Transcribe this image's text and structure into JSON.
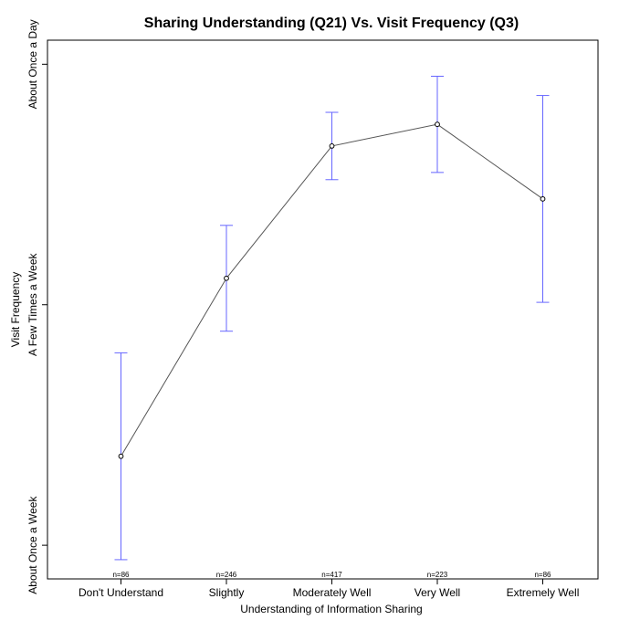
{
  "chart_data": {
    "type": "line",
    "title": "Sharing Understanding (Q21) Vs. Visit Frequency (Q3)",
    "xlabel": "Understanding of Information Sharing",
    "ylabel": "Visit Frequency",
    "categories": [
      "Don't Understand",
      "Slightly",
      "Moderately Well",
      "Very Well",
      "Extremely Well"
    ],
    "y_ticks": [
      {
        "value": 1,
        "label": "About Once a Week"
      },
      {
        "value": 2,
        "label": "A Few Times a Week"
      },
      {
        "value": 3,
        "label": "About Once a Day"
      }
    ],
    "ylim": [
      0.86,
      3.1
    ],
    "series": [
      {
        "values": [
          1.37,
          2.11,
          2.66,
          2.75,
          2.44
        ],
        "lower": [
          0.94,
          1.89,
          2.52,
          2.55,
          2.01
        ],
        "upper": [
          1.8,
          2.33,
          2.8,
          2.95,
          2.87
        ],
        "n": [
          "n=86",
          "n=246",
          "n=417",
          "n=223",
          "n=86"
        ]
      }
    ],
    "line_color": "#555555",
    "errorbar_color": "#6666ff",
    "grid": false,
    "legend": "none"
  }
}
